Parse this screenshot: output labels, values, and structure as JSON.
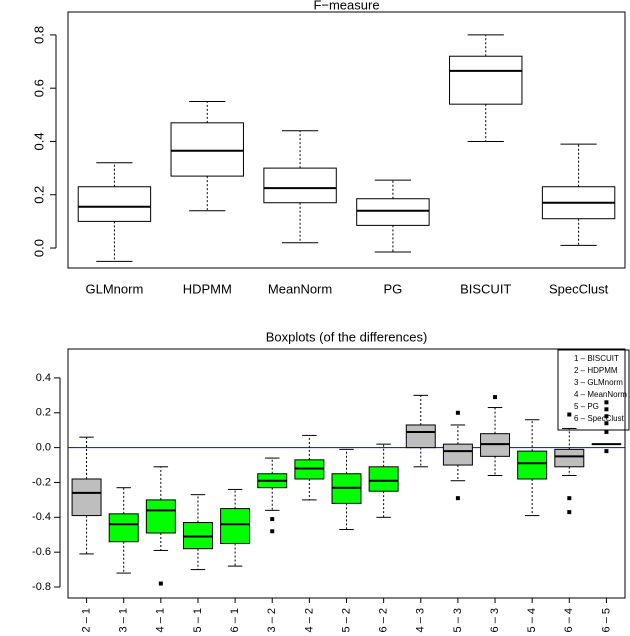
{
  "chart_data": [
    {
      "type": "boxplot",
      "title": "F−measure",
      "categories": [
        "GLMnorm",
        "HDPMM",
        "MeanNorm",
        "PG",
        "BISCUIT",
        "SpecClust"
      ],
      "boxes": [
        {
          "low": -0.05,
          "q1": 0.1,
          "median": 0.155,
          "q3": 0.23,
          "high": 0.32,
          "outliers": []
        },
        {
          "low": 0.14,
          "q1": 0.27,
          "median": 0.365,
          "q3": 0.47,
          "high": 0.55,
          "outliers": []
        },
        {
          "low": 0.02,
          "q1": 0.17,
          "median": 0.225,
          "q3": 0.3,
          "high": 0.44,
          "outliers": []
        },
        {
          "low": -0.015,
          "q1": 0.085,
          "median": 0.14,
          "q3": 0.185,
          "high": 0.255,
          "outliers": []
        },
        {
          "low": 0.4,
          "q1": 0.54,
          "median": 0.665,
          "q3": 0.72,
          "high": 0.8,
          "outliers": []
        },
        {
          "low": 0.01,
          "q1": 0.11,
          "median": 0.17,
          "q3": 0.23,
          "high": 0.39,
          "outliers": []
        }
      ],
      "colors": [
        "#ffffff",
        "#ffffff",
        "#ffffff",
        "#ffffff",
        "#ffffff",
        "#ffffff"
      ],
      "ylim": [
        -0.075,
        0.886
      ],
      "yticks": [
        {
          "value": 0,
          "label": "0.0"
        },
        0.2,
        0.4,
        0.6,
        0.8
      ]
    },
    {
      "type": "boxplot",
      "title": "Boxplots (of the differences)",
      "categories": [
        "2 – 1",
        "3 – 1",
        "4 – 1",
        "5 – 1",
        "6 – 1",
        "3 – 2",
        "4 – 2",
        "5 – 2",
        "6 – 2",
        "4 – 3",
        "5 – 3",
        "6 – 3",
        "5 – 4",
        "6 – 4",
        "6 – 5"
      ],
      "boxes": [
        {
          "low": -0.61,
          "q1": -0.39,
          "median": -0.26,
          "q3": -0.18,
          "high": 0.06,
          "outliers": []
        },
        {
          "low": -0.72,
          "q1": -0.54,
          "median": -0.44,
          "q3": -0.38,
          "high": -0.23,
          "outliers": []
        },
        {
          "low": -0.59,
          "q1": -0.49,
          "median": -0.36,
          "q3": -0.3,
          "high": -0.11,
          "outliers": [
            -0.78
          ]
        },
        {
          "low": -0.7,
          "q1": -0.58,
          "median": -0.51,
          "q3": -0.43,
          "high": -0.27,
          "outliers": []
        },
        {
          "low": -0.68,
          "q1": -0.55,
          "median": -0.44,
          "q3": -0.35,
          "high": -0.24,
          "outliers": []
        },
        {
          "low": -0.36,
          "q1": -0.23,
          "median": -0.19,
          "q3": -0.15,
          "high": -0.06,
          "outliers": [
            -0.41,
            -0.48
          ]
        },
        {
          "low": -0.3,
          "q1": -0.18,
          "median": -0.12,
          "q3": -0.07,
          "high": 0.07,
          "outliers": []
        },
        {
          "low": -0.47,
          "q1": -0.32,
          "median": -0.23,
          "q3": -0.15,
          "high": -0.01,
          "outliers": []
        },
        {
          "low": -0.4,
          "q1": -0.25,
          "median": -0.19,
          "q3": -0.11,
          "high": 0.02,
          "outliers": []
        },
        {
          "low": -0.11,
          "q1": 0.0,
          "median": 0.09,
          "q3": 0.13,
          "high": 0.3,
          "outliers": []
        },
        {
          "low": -0.19,
          "q1": -0.1,
          "median": -0.02,
          "q3": 0.02,
          "high": 0.13,
          "outliers": [
            0.2,
            -0.29
          ]
        },
        {
          "low": -0.16,
          "q1": -0.05,
          "median": 0.02,
          "q3": 0.08,
          "high": 0.23,
          "outliers": [
            0.29
          ]
        },
        {
          "low": -0.39,
          "q1": -0.18,
          "median": -0.09,
          "q3": -0.02,
          "high": 0.16,
          "outliers": []
        },
        {
          "low": -0.16,
          "q1": -0.11,
          "median": -0.05,
          "q3": -0.01,
          "high": 0.11,
          "outliers": [
            0.19,
            -0.29,
            -0.37
          ]
        },
        {
          "low": 0.02,
          "q1": 0.02,
          "median": 0.02,
          "q3": 0.02,
          "high": 0.02,
          "outliers": [
            0.26,
            0.22,
            0.18,
            0.14,
            0.09,
            -0.02
          ]
        }
      ],
      "colors": [
        "#bebebe",
        "#00ff00",
        "#00ff00",
        "#00ff00",
        "#00ff00",
        "#00ff00",
        "#00ff00",
        "#00ff00",
        "#00ff00",
        "#bebebe",
        "#bebebe",
        "#bebebe",
        "#00ff00",
        "#bebebe",
        "#bebebe"
      ],
      "reference_line": {
        "value": 0,
        "color": "#0000ff"
      },
      "legend": [
        "1 – BISCUIT",
        "2 – HDPMM",
        "3 – GLMnorm",
        "4 – MeanNorm",
        "5 – PG",
        "6 – SpecClust"
      ],
      "ylim": [
        -0.863,
        0.566
      ],
      "yticks": [
        {
          "value": -0.8,
          "label": "-0.8"
        },
        {
          "value": -0.6,
          "label": "-0.6"
        },
        {
          "value": -0.4,
          "label": "-0.4"
        },
        {
          "value": -0.2,
          "label": "-0.2"
        },
        {
          "value": 0,
          "label": "0.0"
        },
        0.2,
        0.4
      ]
    }
  ]
}
